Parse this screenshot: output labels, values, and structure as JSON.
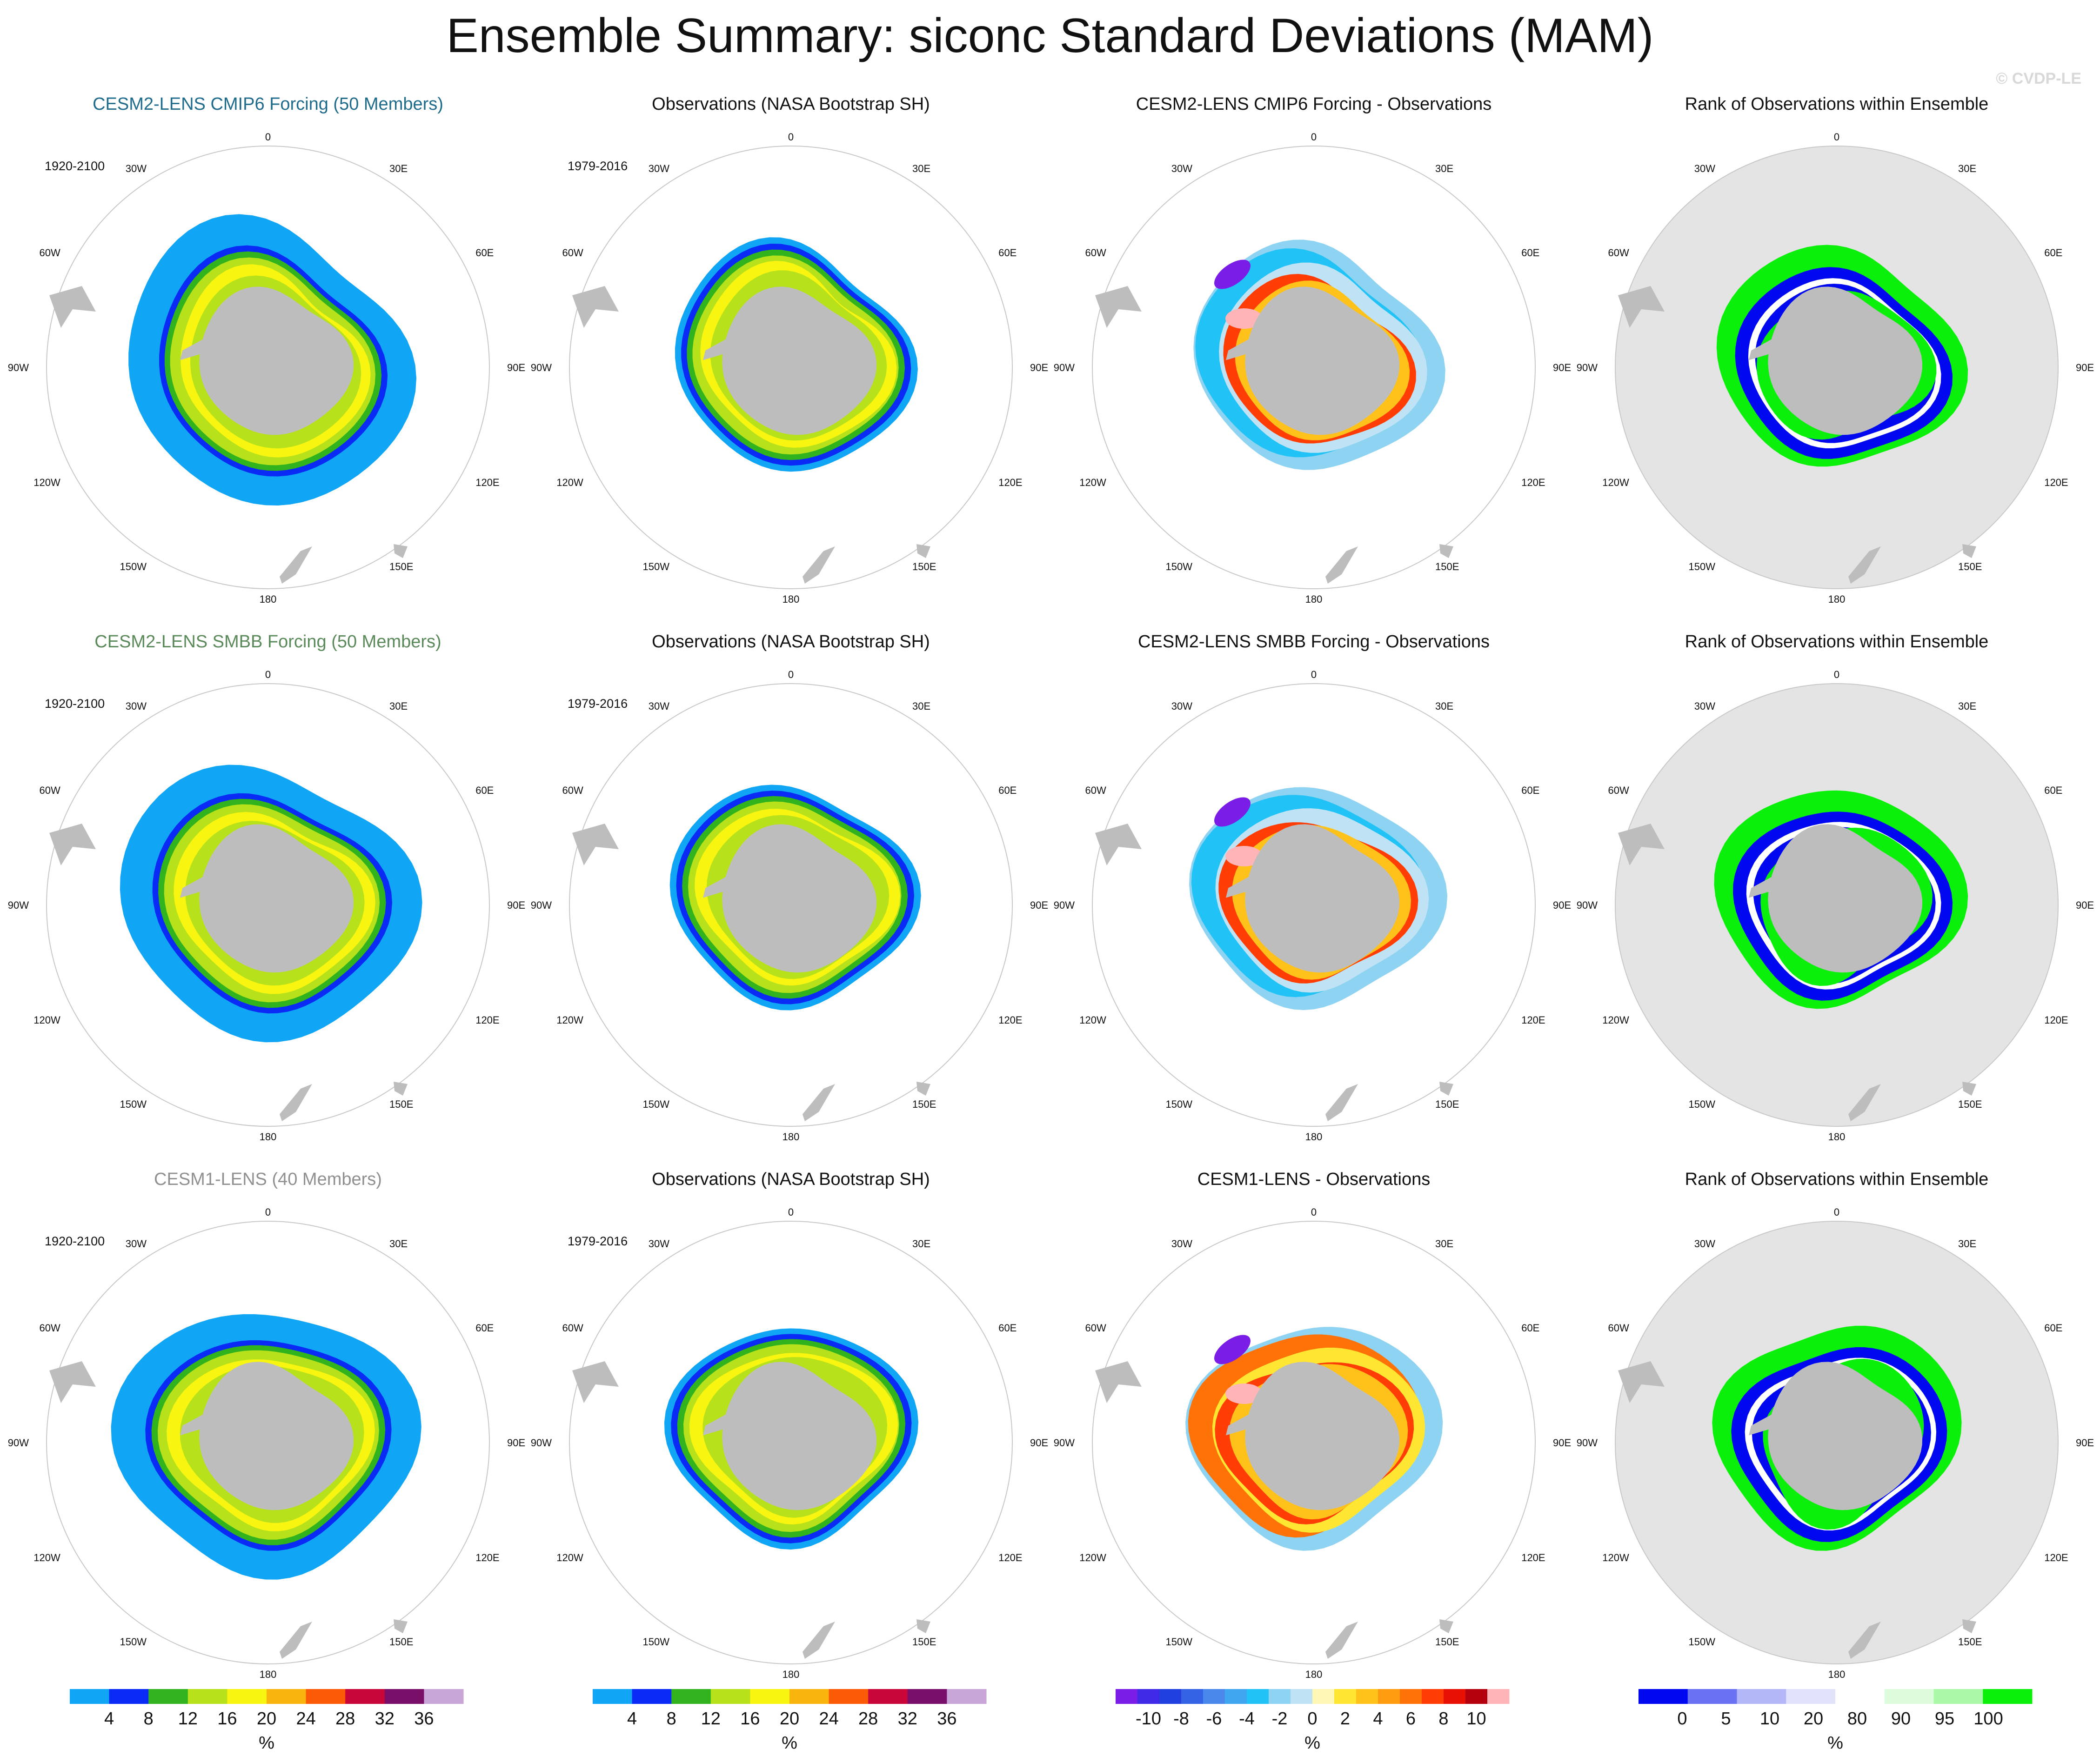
{
  "title": "Ensemble Summary: siconc Standard Deviations (MAM)",
  "credit": "© CVDP-LE",
  "colors": {
    "land": "#bdbdbd",
    "ocean_rank_background": "#e4e4e4",
    "ring_outline": "#c8c8c8",
    "row_title_colors": [
      "#1f6b8c",
      "#5a8a5a",
      "#909090"
    ]
  },
  "lon_labels": {
    "top": "0",
    "bottom": "180",
    "left": [
      "30W",
      "60W",
      "90W",
      "120W",
      "150W"
    ],
    "right": [
      "30E",
      "60E",
      "90E",
      "120E",
      "150E"
    ]
  },
  "panels": [
    [
      {
        "title": "CESM2-LENS CMIP6 Forcing (50 Members)",
        "period": "1920-2100",
        "kind": "stddev_model"
      },
      {
        "title": "Observations (NASA Bootstrap SH)",
        "period": "1979-2016",
        "kind": "stddev_obs"
      },
      {
        "title": "CESM2-LENS CMIP6 Forcing - Observations",
        "period": "",
        "kind": "difference"
      },
      {
        "title": "Rank of Observations within Ensemble",
        "period": "",
        "kind": "rank"
      }
    ],
    [
      {
        "title": "CESM2-LENS SMBB Forcing (50 Members)",
        "period": "1920-2100",
        "kind": "stddev_model"
      },
      {
        "title": "Observations (NASA Bootstrap SH)",
        "period": "1979-2016",
        "kind": "stddev_obs"
      },
      {
        "title": "CESM2-LENS SMBB Forcing - Observations",
        "period": "",
        "kind": "difference"
      },
      {
        "title": "Rank of Observations within Ensemble",
        "period": "",
        "kind": "rank"
      }
    ],
    [
      {
        "title": "CESM1-LENS (40 Members)",
        "period": "1920-2100",
        "kind": "stddev_model"
      },
      {
        "title": "Observations (NASA Bootstrap SH)",
        "period": "1979-2016",
        "kind": "stddev_obs"
      },
      {
        "title": "CESM1-LENS - Observations",
        "period": "",
        "kind": "difference"
      },
      {
        "title": "Rank of Observations within Ensemble",
        "period": "",
        "kind": "rank"
      }
    ]
  ],
  "chart_data": [
    {
      "type": "heatmap",
      "name": "stddev",
      "unit": "%",
      "legend_labels": [
        "4",
        "8",
        "12",
        "16",
        "20",
        "24",
        "28",
        "32",
        "36"
      ],
      "colors": [
        "#10a5f5",
        "#0a2af5",
        "#31b31d",
        "#b6e11b",
        "#f8f510",
        "#f9b50e",
        "#fb5a07",
        "#c8063a",
        "#7a0f6a",
        "#c9a6d8"
      ]
    },
    {
      "type": "heatmap",
      "name": "difference",
      "unit": "%",
      "legend_labels": [
        "-10",
        "-8",
        "-6",
        "-4",
        "-2",
        "0",
        "2",
        "4",
        "6",
        "8",
        "10"
      ],
      "colors": [
        "#7a1de6",
        "#3f28e6",
        "#2140e0",
        "#3563e6",
        "#4a88ec",
        "#3fa7ef",
        "#21c2f5",
        "#8ed4f2",
        "#bfe3f5",
        "#fff7b5",
        "#ffe633",
        "#ffc21a",
        "#ff9c0f",
        "#ff7208",
        "#ff3d05",
        "#e81005",
        "#b5000e",
        "#ffb5b8"
      ]
    },
    {
      "type": "heatmap",
      "name": "rank",
      "unit": "%",
      "legend_labels": [
        "0",
        "5",
        "10",
        "20",
        "80",
        "90",
        "95",
        "100"
      ],
      "colors": [
        "#0008f0",
        "#6a72f3",
        "#b3b7f7",
        "#e1e3fb",
        "#ffffff",
        "#dcfcdc",
        "#a9f9a8",
        "#0af00a"
      ]
    }
  ]
}
